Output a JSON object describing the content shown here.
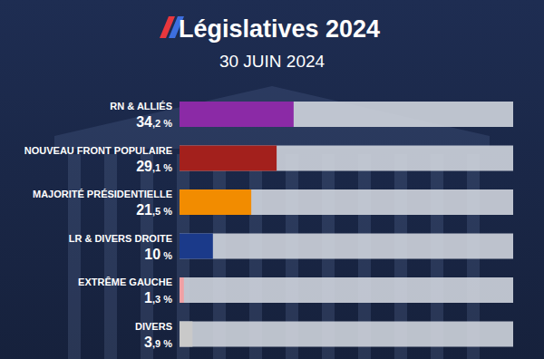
{
  "chart_data": {
    "type": "bar",
    "orientation": "horizontal",
    "title": "Législatives 2024",
    "subtitle": "30 JUIN 2024",
    "categories": [
      "RN & ALLIÉS",
      "NOUVEAU FRONT POPULAIRE",
      "MAJORITÉ PRÉSIDENTIELLE",
      "LR & DIVERS DROITE",
      "EXTRÊME GAUCHE",
      "DIVERS"
    ],
    "values": [
      34.2,
      29.1,
      21.5,
      10,
      1.3,
      3.9
    ],
    "value_labels": [
      "34,2 %",
      "29,1 %",
      "21,5 %",
      "10 %",
      "1,3 %",
      "3,9 %"
    ],
    "colors": [
      "#8b2aa6",
      "#a3201c",
      "#f28c00",
      "#1b3a8a",
      "#f0a0a4",
      "#c9c9c9"
    ],
    "xlim": [
      0,
      100
    ],
    "grid": false,
    "tick_labels": false,
    "data_labels": true
  }
}
